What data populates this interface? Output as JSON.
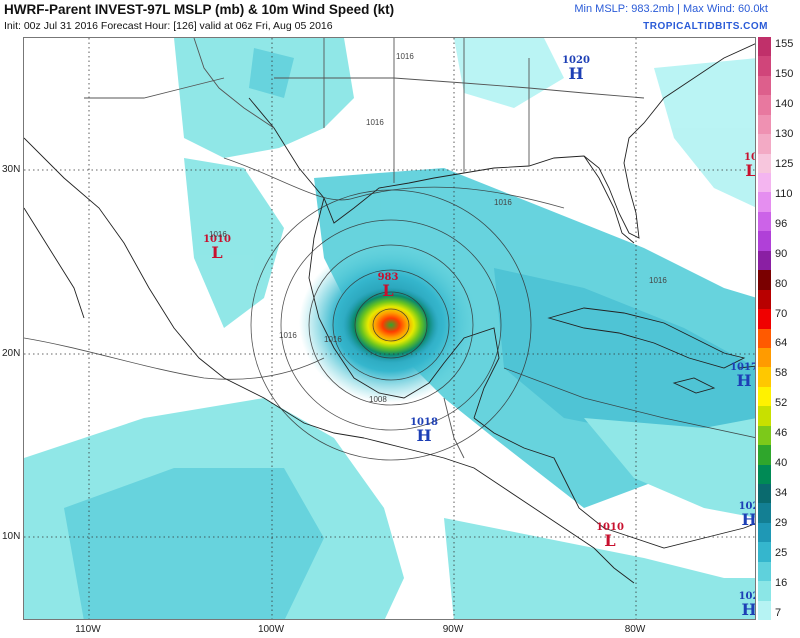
{
  "header": {
    "title": "HWRF-Parent INVEST-97L MSLP (mb) & 10m Wind Speed (kt)",
    "subtitle": "Init: 00z Jul 31 2016   Forecast Hour: [126]   valid at 06z Fri, Aug 05 2016",
    "stats": "Min MSLP: 983.2mb | Max Wind: 60.0kt",
    "credit": "TROPICALTIDBITS.COM"
  },
  "axes": {
    "lat_labels": [
      "30N",
      "20N",
      "10N"
    ],
    "lon_labels": [
      "110W",
      "100W",
      "90W",
      "80W"
    ]
  },
  "colorbar": {
    "labels": [
      "155",
      "150",
      "140",
      "130",
      "125",
      "110",
      "96",
      "90",
      "80",
      "70",
      "64",
      "58",
      "52",
      "46",
      "40",
      "34",
      "29",
      "25",
      "16",
      "7"
    ],
    "colors": [
      "#c0306a",
      "#d0457a",
      "#dd5f8c",
      "#e8789f",
      "#ef91b2",
      "#f3aac5",
      "#f7c6dd",
      "#f4b5f0",
      "#e58ef0",
      "#cc63e8",
      "#b040d8",
      "#8a1fa3",
      "#7a0000",
      "#b80000",
      "#f00000",
      "#ff5a00",
      "#ff9b00",
      "#ffc800",
      "#fff200",
      "#c8e000",
      "#7cc91a",
      "#2fa62c",
      "#008a55",
      "#0a6a6e",
      "#137f93",
      "#1f98b5",
      "#35b6cd",
      "#5fd1dc",
      "#8be6e6",
      "#b6f3f3"
    ]
  },
  "pressure_centers": [
    {
      "id": "low-gulf",
      "type": "L",
      "value": "983"
    },
    {
      "id": "low-mexico",
      "type": "L",
      "value": "1010"
    },
    {
      "id": "low-east",
      "type": "L",
      "value": "10"
    },
    {
      "id": "low-south",
      "type": "L",
      "value": "1010"
    },
    {
      "id": "high-north",
      "type": "H",
      "value": "1020"
    },
    {
      "id": "high-central",
      "type": "H",
      "value": "1018"
    },
    {
      "id": "high-carib",
      "type": "H",
      "value": "1017"
    },
    {
      "id": "high-se",
      "type": "H",
      "value": "102"
    },
    {
      "id": "high-se2",
      "type": "H",
      "value": "102"
    }
  ],
  "isobar_labels": [
    "1016",
    "1016",
    "1016",
    "1016",
    "1008",
    "1016",
    "1016",
    "1016"
  ]
}
